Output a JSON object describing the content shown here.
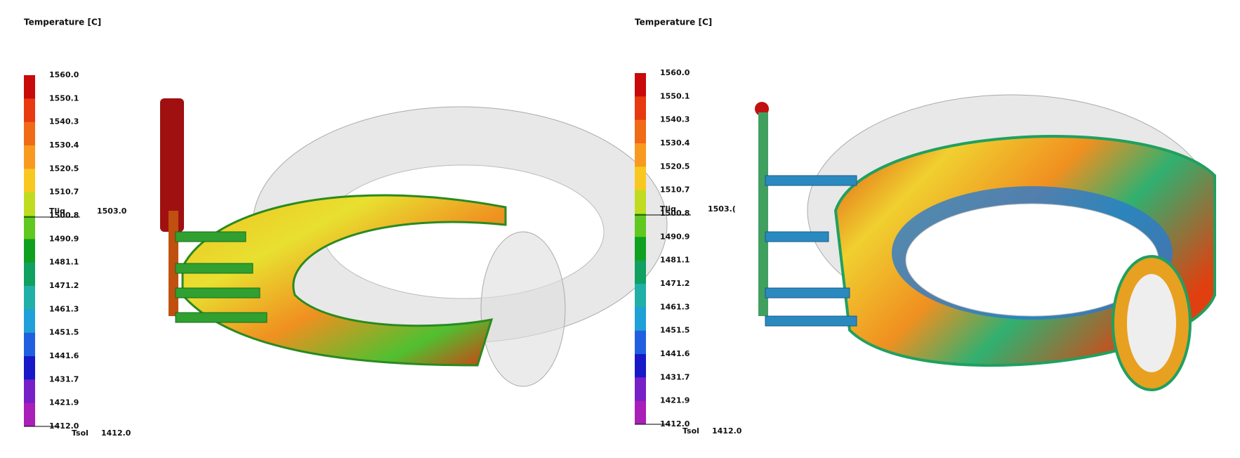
{
  "panels": [
    {
      "title": "Temperature  [C]",
      "legend_labels": [
        "1560.0",
        "1550.1",
        "1540.3",
        "1530.4",
        "1520.5",
        "1510.7",
        "1500.8",
        "1490.9",
        "1481.1",
        "1471.2",
        "1461.3",
        "1451.5",
        "1441.6",
        "1431.7",
        "1421.9",
        "1412.0"
      ],
      "liquidus": {
        "label": "Tliq",
        "value": "1503.0"
      },
      "solidus": {
        "label": "Tsol",
        "value": "1412.0"
      }
    },
    {
      "title": "Temperature  [C]",
      "legend_labels": [
        "1560.0",
        "1550.1",
        "1540.3",
        "1530.4",
        "1520.5",
        "1510.7",
        "1500.8",
        "1490.9",
        "1481.1",
        "1471.2",
        "1461.3",
        "1451.5",
        "1441.6",
        "1431.7",
        "1421.9",
        "1412.0"
      ],
      "liquidus": {
        "label": "Tliq",
        "value": "1503.("
      },
      "solidus": {
        "label": "Tsol",
        "value": "1412.0"
      }
    }
  ]
}
